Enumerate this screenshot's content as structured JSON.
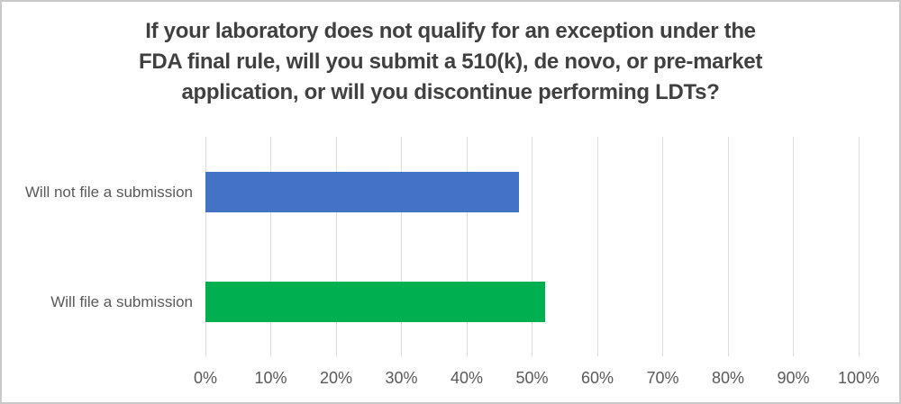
{
  "chart_data": {
    "type": "bar",
    "orientation": "horizontal",
    "title": "If your laboratory does not qualify for an exception under the FDA final rule, will you submit a 510(k), de novo, or pre-market application, or will you discontinue performing LDTs?",
    "title_lines": [
      "If your laboratory does not qualify for an exception under the",
      "FDA final rule, will you submit a 510(k), de novo, or pre-market",
      "application, or will you discontinue performing LDTs?"
    ],
    "categories": [
      "Will not file a submission",
      "Will file a submission"
    ],
    "values": [
      48,
      52
    ],
    "value_unit": "%",
    "bar_colors": [
      "#4472C4",
      "#00B050"
    ],
    "xlabel": "",
    "ylabel": "",
    "xlim": [
      0,
      100
    ],
    "x_ticks": [
      {
        "value": 0,
        "label": "0%"
      },
      {
        "value": 10,
        "label": "10%"
      },
      {
        "value": 20,
        "label": "20%"
      },
      {
        "value": 30,
        "label": "30%"
      },
      {
        "value": 40,
        "label": "40%"
      },
      {
        "value": 50,
        "label": "50%"
      },
      {
        "value": 60,
        "label": "60%"
      },
      {
        "value": 70,
        "label": "70%"
      },
      {
        "value": 80,
        "label": "80%"
      },
      {
        "value": 90,
        "label": "90%"
      },
      {
        "value": 100,
        "label": "100%"
      }
    ],
    "grid": "vertical",
    "legend": "none",
    "colors": {
      "gridline": "#DCDCDC",
      "axis_text": "#595959",
      "title_text": "#404040",
      "frame_border": "#C9C9C9",
      "background": "#FFFFFF"
    }
  }
}
